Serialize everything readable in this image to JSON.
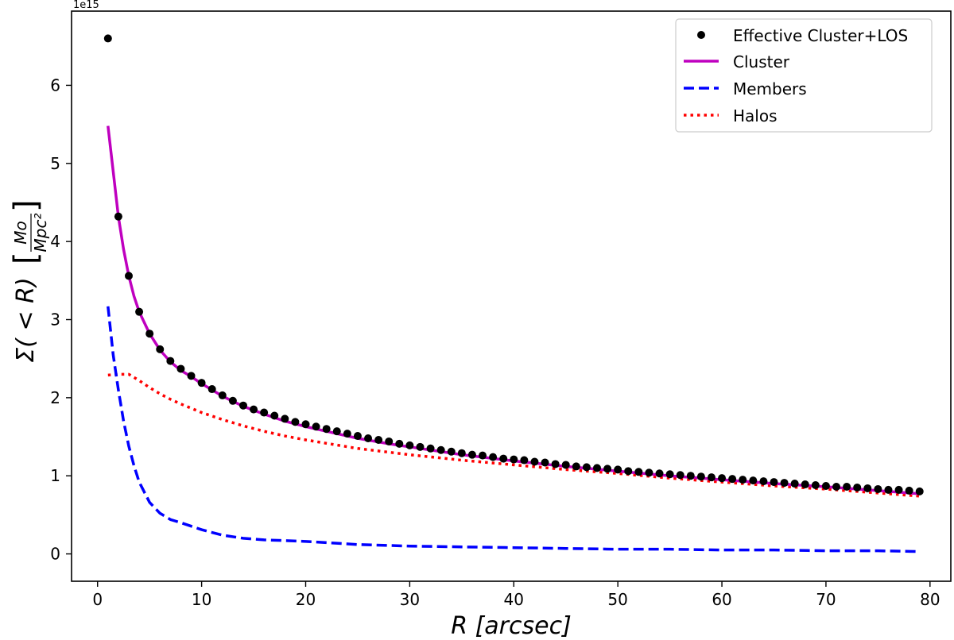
{
  "chart_data": {
    "type": "line",
    "title": "",
    "offset_label": "1e15",
    "xlabel": "R [arcsec]",
    "ylabel": "Σ(< R) [Mo / Mpc²]",
    "ylabel_main": "Σ( < R)",
    "ylabel_unit_num": "Mo",
    "ylabel_unit_den": "Mpc²",
    "xlim": [
      -2.5,
      82
    ],
    "ylim": [
      -0.35,
      6.95
    ],
    "x_ticks": [
      0,
      10,
      20,
      30,
      40,
      50,
      60,
      70,
      80
    ],
    "x_tick_labels": [
      "0",
      "10",
      "20",
      "30",
      "40",
      "50",
      "60",
      "70",
      "80"
    ],
    "y_ticks": [
      0,
      1,
      2,
      3,
      4,
      5,
      6
    ],
    "y_tick_labels": [
      "0",
      "1",
      "2",
      "3",
      "4",
      "5",
      "6"
    ],
    "legend_position": "top-right",
    "legend": [
      {
        "name": "Effective Cluster+LOS",
        "style": "markers",
        "color": "#000000"
      },
      {
        "name": "Cluster",
        "style": "solid",
        "color": "#bf00bf"
      },
      {
        "name": "Members",
        "style": "dashed",
        "color": "#0000ff"
      },
      {
        "name": "Halos",
        "style": "dotted",
        "color": "#ff0000"
      }
    ],
    "series": [
      {
        "name": "Effective Cluster+LOS",
        "style": "markers",
        "color": "#000000",
        "x": [
          1,
          2,
          3,
          4,
          5,
          6,
          7,
          8,
          9,
          10,
          11,
          12,
          13,
          14,
          15,
          16,
          17,
          18,
          19,
          20,
          21,
          22,
          23,
          24,
          25,
          26,
          27,
          28,
          29,
          30,
          31,
          32,
          33,
          34,
          35,
          36,
          37,
          38,
          39,
          40,
          41,
          42,
          43,
          44,
          45,
          46,
          47,
          48,
          49,
          50,
          51,
          52,
          53,
          54,
          55,
          56,
          57,
          58,
          59,
          60,
          61,
          62,
          63,
          64,
          65,
          66,
          67,
          68,
          69,
          70,
          71,
          72,
          73,
          74,
          75,
          76,
          77,
          78,
          79
        ],
        "y": [
          6.6,
          4.32,
          3.56,
          3.1,
          2.82,
          2.62,
          2.47,
          2.37,
          2.28,
          2.19,
          2.11,
          2.03,
          1.96,
          1.9,
          1.85,
          1.81,
          1.77,
          1.73,
          1.69,
          1.66,
          1.63,
          1.6,
          1.57,
          1.54,
          1.51,
          1.48,
          1.46,
          1.44,
          1.41,
          1.39,
          1.37,
          1.35,
          1.33,
          1.31,
          1.29,
          1.27,
          1.26,
          1.24,
          1.22,
          1.21,
          1.2,
          1.18,
          1.17,
          1.15,
          1.14,
          1.12,
          1.11,
          1.1,
          1.09,
          1.08,
          1.06,
          1.05,
          1.04,
          1.03,
          1.02,
          1.01,
          1.0,
          0.99,
          0.98,
          0.97,
          0.96,
          0.95,
          0.94,
          0.93,
          0.92,
          0.91,
          0.9,
          0.89,
          0.88,
          0.87,
          0.86,
          0.86,
          0.85,
          0.84,
          0.83,
          0.82,
          0.82,
          0.81,
          0.8
        ]
      },
      {
        "name": "Cluster",
        "style": "solid",
        "color": "#bf00bf",
        "x": [
          1,
          1.5,
          2,
          2.5,
          3,
          3.5,
          4,
          5,
          6,
          7,
          8,
          9,
          10,
          12,
          14,
          16,
          18,
          20,
          22,
          25,
          28,
          30,
          35,
          40,
          45,
          50,
          55,
          60,
          65,
          70,
          75,
          79
        ],
        "y": [
          5.48,
          4.9,
          4.32,
          3.9,
          3.56,
          3.3,
          3.1,
          2.82,
          2.61,
          2.46,
          2.35,
          2.27,
          2.18,
          2.02,
          1.89,
          1.79,
          1.7,
          1.63,
          1.57,
          1.48,
          1.41,
          1.37,
          1.27,
          1.19,
          1.12,
          1.06,
          1.0,
          0.95,
          0.9,
          0.86,
          0.81,
          0.77
        ]
      },
      {
        "name": "Members",
        "style": "dashed",
        "color": "#0000ff",
        "x": [
          1,
          1.5,
          2,
          2.5,
          3,
          3.5,
          4,
          5,
          6,
          7,
          8,
          10,
          12,
          14,
          16,
          18,
          20,
          25,
          30,
          35,
          40,
          45,
          50,
          55,
          60,
          65,
          70,
          75,
          79
        ],
        "y": [
          3.17,
          2.55,
          2.1,
          1.7,
          1.38,
          1.13,
          0.92,
          0.66,
          0.52,
          0.44,
          0.4,
          0.31,
          0.24,
          0.2,
          0.18,
          0.17,
          0.16,
          0.12,
          0.1,
          0.09,
          0.08,
          0.07,
          0.06,
          0.06,
          0.05,
          0.05,
          0.04,
          0.04,
          0.03
        ]
      },
      {
        "name": "Halos",
        "style": "dotted",
        "color": "#ff0000",
        "x": [
          1,
          2,
          3,
          4,
          5,
          6,
          7,
          8,
          10,
          12,
          14,
          16,
          18,
          20,
          25,
          30,
          35,
          40,
          45,
          50,
          55,
          60,
          65,
          70,
          75,
          79
        ],
        "y": [
          2.29,
          2.3,
          2.3,
          2.22,
          2.13,
          2.05,
          1.98,
          1.92,
          1.81,
          1.72,
          1.64,
          1.57,
          1.51,
          1.46,
          1.35,
          1.27,
          1.2,
          1.14,
          1.08,
          1.03,
          0.97,
          0.92,
          0.87,
          0.83,
          0.78,
          0.74
        ]
      }
    ]
  }
}
